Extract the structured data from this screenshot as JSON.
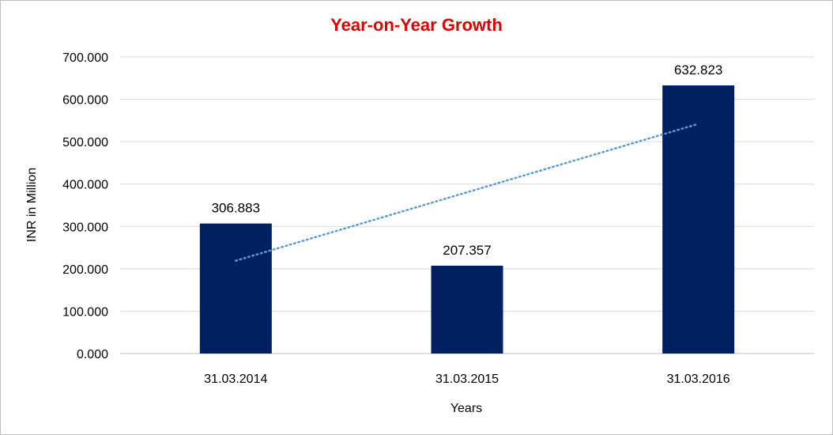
{
  "chart_data": {
    "type": "bar",
    "title": "Year-on-Year Growth",
    "xlabel": "Years",
    "ylabel": "INR in Million",
    "categories": [
      "31.03.2014",
      "31.03.2015",
      "31.03.2016"
    ],
    "values": [
      306.883,
      207.357,
      632.823
    ],
    "data_labels": [
      "306.883",
      "207.357",
      "632.823"
    ],
    "ylim": [
      0,
      700
    ],
    "yticks": [
      0,
      100,
      200,
      300,
      400,
      500,
      600,
      700
    ],
    "ytick_labels": [
      "0.000",
      "100.000",
      "200.000",
      "300.000",
      "400.000",
      "500.000",
      "600.000",
      "700.000"
    ],
    "trendline": {
      "type": "linear",
      "start": 219.1,
      "end": 542.1,
      "style": "dotted"
    },
    "grid": true,
    "legend": "none",
    "colors": {
      "bar": "#002060",
      "title": "#e00000",
      "trendline": "#5b9bd5",
      "grid": "#d9d9d9"
    }
  }
}
